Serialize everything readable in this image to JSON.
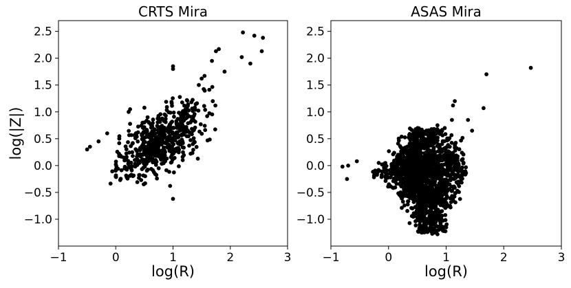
{
  "chart_data": [
    {
      "type": "scatter",
      "title": "CRTS Mira",
      "xlabel": "log(R)",
      "ylabel": "log(|Z|)",
      "xlim": [
        -1,
        3
      ],
      "ylim": [
        -1.5,
        2.7
      ],
      "xticks": [
        -1,
        0,
        1,
        2,
        3
      ],
      "yticks": [
        -1.0,
        -0.5,
        0.0,
        0.5,
        1.0,
        1.5,
        2.0,
        2.5
      ],
      "xtick_labels": [
        "−1",
        "0",
        "1",
        "2",
        "3"
      ],
      "ytick_labels": [
        "−1.0",
        "−0.5",
        "0.0",
        "0.5",
        "1.0",
        "1.5",
        "2.0",
        "2.5"
      ],
      "marker_color": "#000000",
      "grid": false,
      "distribution": {
        "points": 600,
        "trend": "positive correlation, log(|Z|) rises with log(R)",
        "main_cloud_x": [
          0.0,
          1.6
        ],
        "main_cloud_y": [
          -0.3,
          1.3
        ]
      },
      "notable_points": [
        {
          "x": -0.5,
          "y": 0.3
        },
        {
          "x": -0.45,
          "y": 0.35
        },
        {
          "x": -0.3,
          "y": 0.45
        },
        {
          "x": -0.15,
          "y": 0.6
        },
        {
          "x": 0.25,
          "y": 1.05
        },
        {
          "x": 1.0,
          "y": 1.85
        },
        {
          "x": 1.0,
          "y": 1.8
        },
        {
          "x": 1.0,
          "y": -0.62
        },
        {
          "x": 0.95,
          "y": -0.38
        },
        {
          "x": 1.75,
          "y": 2.13
        },
        {
          "x": 1.8,
          "y": 2.17
        },
        {
          "x": 1.68,
          "y": 1.95
        },
        {
          "x": 1.5,
          "y": 1.62
        },
        {
          "x": 1.55,
          "y": 1.67
        },
        {
          "x": 1.45,
          "y": 1.5
        },
        {
          "x": 1.9,
          "y": 1.75
        },
        {
          "x": 2.2,
          "y": 2.02
        },
        {
          "x": 2.22,
          "y": 2.48
        },
        {
          "x": 2.35,
          "y": 1.9
        },
        {
          "x": 2.42,
          "y": 2.42
        },
        {
          "x": 2.55,
          "y": 2.13
        },
        {
          "x": 2.57,
          "y": 2.38
        }
      ]
    },
    {
      "type": "scatter",
      "title": "ASAS Mira",
      "xlabel": "log(R)",
      "ylabel": "",
      "xlim": [
        -1,
        3
      ],
      "ylim": [
        -1.5,
        2.7
      ],
      "xticks": [
        -1,
        0,
        1,
        2,
        3
      ],
      "yticks": [
        -1.0,
        -0.5,
        0.0,
        0.5,
        1.0,
        1.5,
        2.0,
        2.5
      ],
      "xtick_labels": [
        "−1",
        "0",
        "1",
        "2",
        "3"
      ],
      "ytick_labels": [
        "−1.0",
        "−0.5",
        "0.0",
        "0.5",
        "1.0",
        "1.5",
        "2.0",
        "2.5"
      ],
      "marker_color": "#000000",
      "grid": false,
      "distribution": {
        "points": 1800,
        "trend": "dense triangular cloud centered near log(R)=0.6, log(|Z|)=-0.1",
        "main_cloud_x": [
          -0.5,
          1.3
        ],
        "main_cloud_y": [
          -1.3,
          0.7
        ]
      },
      "notable_points": [
        {
          "x": -0.8,
          "y": -0.02
        },
        {
          "x": -0.7,
          "y": 0.0
        },
        {
          "x": -0.72,
          "y": -0.25
        },
        {
          "x": -0.55,
          "y": 0.08
        },
        {
          "x": 1.15,
          "y": 1.2
        },
        {
          "x": 1.12,
          "y": 1.12
        },
        {
          "x": 1.1,
          "y": 0.85
        },
        {
          "x": 0.85,
          "y": 0.75
        },
        {
          "x": 1.38,
          "y": 0.85
        },
        {
          "x": 1.45,
          "y": 0.65
        },
        {
          "x": 1.65,
          "y": 1.07
        },
        {
          "x": 1.7,
          "y": 1.7
        },
        {
          "x": 2.47,
          "y": 1.82
        },
        {
          "x": 0.85,
          "y": -1.28
        },
        {
          "x": 0.8,
          "y": -1.22
        },
        {
          "x": 1.0,
          "y": -1.15
        }
      ]
    }
  ]
}
